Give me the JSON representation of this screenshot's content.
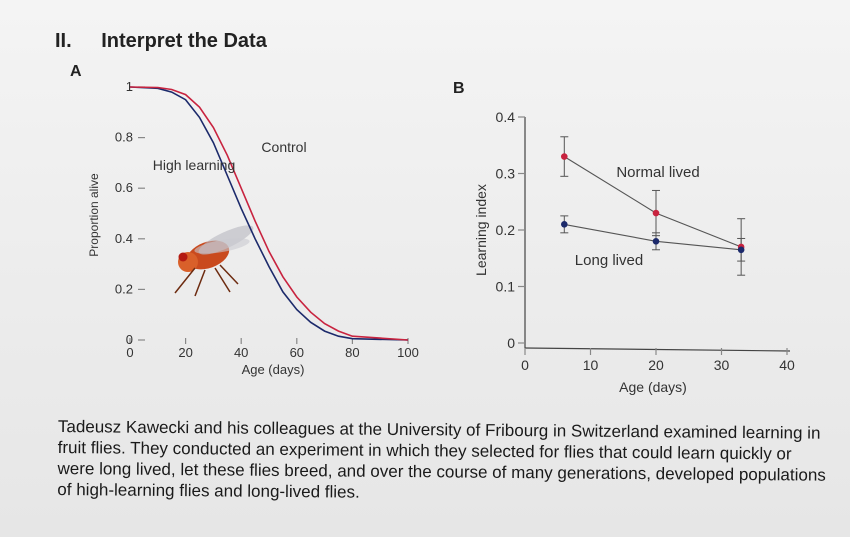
{
  "heading": {
    "number": "II.",
    "title": "Interpret the Data"
  },
  "panel_a_label": "A",
  "panel_b_label": "B",
  "paragraph": "Tadeusz Kawecki and his colleagues at the University of Fribourg in Switzerland examined learning in fruit flies. They conducted an experiment in which they selected for flies that could learn quickly or were long lived, let these flies breed, and over the course of many generations, developed populations of high-learning flies and long-lived flies.",
  "chart_data": [
    {
      "type": "line",
      "panel": "A",
      "ylabel": "Proportion alive",
      "xlabel": "Age (days)",
      "xlim": [
        0,
        100
      ],
      "ylim": [
        0,
        1
      ],
      "x_ticks": [
        "0",
        "20",
        "40",
        "60",
        "80",
        "100"
      ],
      "y_ticks": [
        "0",
        "0.2",
        "0.4",
        "0.6",
        "0.8",
        "1"
      ],
      "series": [
        {
          "name": "High learning",
          "color": "#1c2a6b",
          "points": [
            [
              0,
              1
            ],
            [
              10,
              0.995
            ],
            [
              15,
              0.98
            ],
            [
              20,
              0.95
            ],
            [
              25,
              0.88
            ],
            [
              30,
              0.78
            ],
            [
              35,
              0.65
            ],
            [
              40,
              0.52
            ],
            [
              45,
              0.4
            ],
            [
              50,
              0.29
            ],
            [
              55,
              0.19
            ],
            [
              60,
              0.12
            ],
            [
              65,
              0.07
            ],
            [
              70,
              0.035
            ],
            [
              75,
              0.015
            ],
            [
              80,
              0.005
            ],
            [
              100,
              0
            ]
          ]
        },
        {
          "name": "Control",
          "color": "#c8233f",
          "points": [
            [
              0,
              1
            ],
            [
              10,
              0.998
            ],
            [
              15,
              0.99
            ],
            [
              20,
              0.97
            ],
            [
              25,
              0.92
            ],
            [
              30,
              0.84
            ],
            [
              35,
              0.73
            ],
            [
              40,
              0.6
            ],
            [
              45,
              0.47
            ],
            [
              50,
              0.35
            ],
            [
              55,
              0.25
            ],
            [
              60,
              0.17
            ],
            [
              65,
              0.11
            ],
            [
              70,
              0.065
            ],
            [
              75,
              0.035
            ],
            [
              80,
              0.015
            ],
            [
              100,
              0
            ]
          ]
        }
      ],
      "has_fly_image": true
    },
    {
      "type": "scatter",
      "panel": "B",
      "ylabel": "Learning index",
      "xlabel": "Age (days)",
      "xlim": [
        0,
        40
      ],
      "ylim": [
        0,
        0.4
      ],
      "x_ticks": [
        "0",
        "10",
        "20",
        "30",
        "40"
      ],
      "y_ticks": [
        "0",
        "0.1",
        "0.2",
        "0.3",
        "0.4"
      ],
      "series": [
        {
          "name": "Normal lived",
          "color": "#c8233f",
          "points": [
            [
              6,
              0.33,
              0.035
            ],
            [
              20,
              0.23,
              0.04
            ],
            [
              33,
              0.17,
              0.05
            ]
          ]
        },
        {
          "name": "Long lived",
          "color": "#1c2a6b",
          "points": [
            [
              6,
              0.21,
              0.015
            ],
            [
              20,
              0.18,
              0.015
            ],
            [
              33,
              0.165,
              0.02
            ]
          ]
        }
      ]
    }
  ]
}
